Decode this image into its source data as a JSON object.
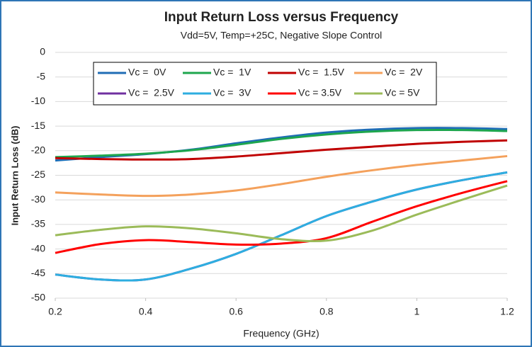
{
  "chart_data": {
    "type": "line",
    "title": "Input Return Loss versus Frequency",
    "subtitle": "Vdd=5V, Temp=+25C, Negative Slope Control",
    "xlabel": "Frequency (GHz)",
    "ylabel": "Input Return Loss (dB)",
    "x": [
      0.2,
      0.3,
      0.4,
      0.5,
      0.6,
      0.7,
      0.8,
      0.9,
      1.0,
      1.1,
      1.2
    ],
    "xlim": [
      0.2,
      1.2
    ],
    "xticks": [
      0.2,
      0.4,
      0.6,
      0.8,
      1,
      1.2
    ],
    "ylim": [
      -50,
      0
    ],
    "yticks": [
      0,
      -5,
      -10,
      -15,
      -20,
      -25,
      -30,
      -35,
      -40,
      -45,
      -50
    ],
    "grid": true,
    "series": [
      {
        "name": "Vc =  0V",
        "color": "#1f6db5",
        "values": [
          -22,
          -21.3,
          -20.7,
          -19.8,
          -18.5,
          -17.3,
          -16.3,
          -15.7,
          -15.4,
          -15.4,
          -15.6
        ]
      },
      {
        "name": "Vc =  1V",
        "color": "#1ea64e",
        "values": [
          -21.3,
          -21,
          -20.6,
          -19.9,
          -18.8,
          -17.6,
          -16.7,
          -16.1,
          -15.8,
          -15.8,
          -16
        ]
      },
      {
        "name": "Vc =  1.5V",
        "color": "#c00000",
        "values": [
          -21.5,
          -21.7,
          -21.8,
          -21.7,
          -21.2,
          -20.5,
          -19.8,
          -19.2,
          -18.6,
          -18.2,
          -17.9
        ]
      },
      {
        "name": "Vc =  2V",
        "color": "#f4a15c",
        "values": [
          -28.5,
          -28.9,
          -29.2,
          -28.9,
          -28.1,
          -26.8,
          -25.3,
          -24,
          -22.9,
          -22,
          -21.1
        ]
      },
      {
        "name": "Vc =  2.5V",
        "color": "#7030a0",
        "values": [
          -45.2,
          -46.2,
          -46.2,
          -44,
          -41,
          -37.2,
          -33.3,
          -30.4,
          -27.9,
          -26,
          -24.4
        ]
      },
      {
        "name": "Vc =  3V",
        "color": "#2eaee0",
        "values": [
          -45.2,
          -46.2,
          -46.2,
          -44,
          -41,
          -37.2,
          -33.3,
          -30.4,
          -27.9,
          -26,
          -24.4
        ]
      },
      {
        "name": "Vc = 3.5V",
        "color": "#ff0000",
        "values": [
          -40.8,
          -39,
          -38.2,
          -38.6,
          -39.1,
          -38.9,
          -37.8,
          -34.5,
          -31.3,
          -28.6,
          -26.2
        ]
      },
      {
        "name": "Vc = 5V",
        "color": "#9bbb59",
        "values": [
          -37.2,
          -36.1,
          -35.4,
          -35.8,
          -36.8,
          -38,
          -38.3,
          -36.3,
          -33,
          -30,
          -27.1
        ]
      }
    ]
  }
}
